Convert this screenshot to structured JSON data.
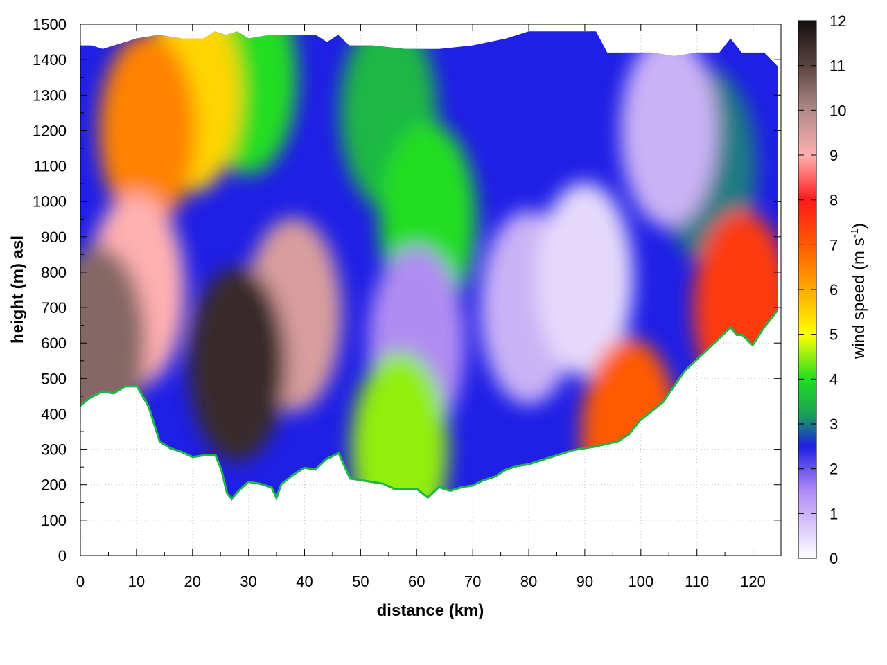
{
  "chart_data": {
    "type": "heatmap",
    "title": "",
    "xlabel": "distance (km)",
    "ylabel": "height (m) asl",
    "xlim": [
      0,
      125
    ],
    "ylim": [
      0,
      1500
    ],
    "x_ticks": [
      "0",
      "10",
      "20",
      "30",
      "40",
      "50",
      "60",
      "70",
      "80",
      "90",
      "100",
      "110",
      "120"
    ],
    "y_ticks": [
      "0",
      "100",
      "200",
      "300",
      "400",
      "500",
      "600",
      "700",
      "800",
      "900",
      "1000",
      "1100",
      "1200",
      "1300",
      "1400",
      "1500"
    ],
    "grid": true,
    "colorbar": {
      "label_main": "wind speed (m s",
      "label_sup": "-1",
      "label_close": ")",
      "range": [
        0,
        12
      ],
      "ticks": [
        "0",
        "1",
        "2",
        "3",
        "4",
        "5",
        "6",
        "7",
        "8",
        "9",
        "10",
        "11",
        "12"
      ],
      "colors": [
        {
          "value": 0,
          "color": "#ffffff"
        },
        {
          "value": 1.5,
          "color": "#b08cf2"
        },
        {
          "value": 2.5,
          "color": "#1f1fe6"
        },
        {
          "value": 3.2,
          "color": "#1aa05a"
        },
        {
          "value": 4,
          "color": "#22dd22"
        },
        {
          "value": 5,
          "color": "#ffff00"
        },
        {
          "value": 6,
          "color": "#ffaa00"
        },
        {
          "value": 7,
          "color": "#ff5a00"
        },
        {
          "value": 8,
          "color": "#ff1a1a"
        },
        {
          "value": 9,
          "color": "#ffb0b0"
        },
        {
          "value": 10,
          "color": "#b08a88"
        },
        {
          "value": 11,
          "color": "#5a4442"
        },
        {
          "value": 12,
          "color": "#141010"
        }
      ]
    },
    "terrain": {
      "x": [
        0,
        2,
        4,
        6,
        8,
        10,
        12,
        14,
        16,
        18,
        20,
        22,
        24,
        25,
        26,
        27,
        28,
        30,
        32,
        34,
        35,
        36,
        38,
        40,
        42,
        44,
        46,
        48,
        50,
        52,
        54,
        56,
        58,
        60,
        62,
        64,
        66,
        68,
        70,
        72,
        74,
        76,
        78,
        80,
        84,
        88,
        92,
        96,
        97,
        98,
        100,
        104,
        108,
        112,
        114,
        116,
        117,
        118,
        120,
        122,
        124.5
      ],
      "y": [
        420,
        445,
        460,
        455,
        475,
        475,
        420,
        320,
        300,
        290,
        275,
        280,
        280,
        240,
        175,
        155,
        175,
        205,
        200,
        190,
        155,
        200,
        225,
        245,
        240,
        270,
        285,
        215,
        210,
        205,
        200,
        185,
        185,
        185,
        160,
        190,
        180,
        190,
        195,
        210,
        220,
        240,
        250,
        255,
        275,
        295,
        305,
        320,
        330,
        340,
        380,
        430,
        520,
        580,
        610,
        640,
        620,
        620,
        590,
        640,
        690
      ]
    },
    "top_envelope": {
      "x": [
        0,
        2,
        4,
        8,
        10,
        14,
        18,
        22,
        24,
        26,
        28,
        30,
        34,
        38,
        42,
        44,
        46,
        48,
        52,
        58,
        64,
        70,
        76,
        80,
        86,
        92,
        94,
        98,
        102,
        106,
        110,
        114,
        116,
        118,
        122,
        124.5
      ],
      "y": [
        1440,
        1440,
        1430,
        1450,
        1460,
        1470,
        1460,
        1460,
        1480,
        1470,
        1480,
        1460,
        1470,
        1470,
        1470,
        1450,
        1470,
        1440,
        1440,
        1430,
        1430,
        1440,
        1460,
        1480,
        1480,
        1480,
        1420,
        1420,
        1420,
        1410,
        1420,
        1420,
        1460,
        1420,
        1420,
        1380
      ]
    },
    "regions_description_values": [
      {
        "x": 3,
        "y": 600,
        "value": 10.5
      },
      {
        "x": 28,
        "y": 540,
        "value": 11.5
      },
      {
        "x": 38,
        "y": 680,
        "value": 9.5
      },
      {
        "x": 10,
        "y": 750,
        "value": 9
      },
      {
        "x": 12,
        "y": 1200,
        "value": 6.5
      },
      {
        "x": 20,
        "y": 1300,
        "value": 5.5
      },
      {
        "x": 30,
        "y": 1350,
        "value": 4
      },
      {
        "x": 55,
        "y": 1250,
        "value": 3.5
      },
      {
        "x": 62,
        "y": 950,
        "value": 4
      },
      {
        "x": 60,
        "y": 600,
        "value": 1.5
      },
      {
        "x": 80,
        "y": 700,
        "value": 1
      },
      {
        "x": 90,
        "y": 780,
        "value": 0.5
      },
      {
        "x": 57,
        "y": 300,
        "value": 4.5
      },
      {
        "x": 98,
        "y": 340,
        "value": 7
      },
      {
        "x": 105,
        "y": 1200,
        "value": 1
      },
      {
        "x": 118,
        "y": 700,
        "value": 7.5
      },
      {
        "x": 112,
        "y": 1100,
        "value": 3
      }
    ]
  }
}
